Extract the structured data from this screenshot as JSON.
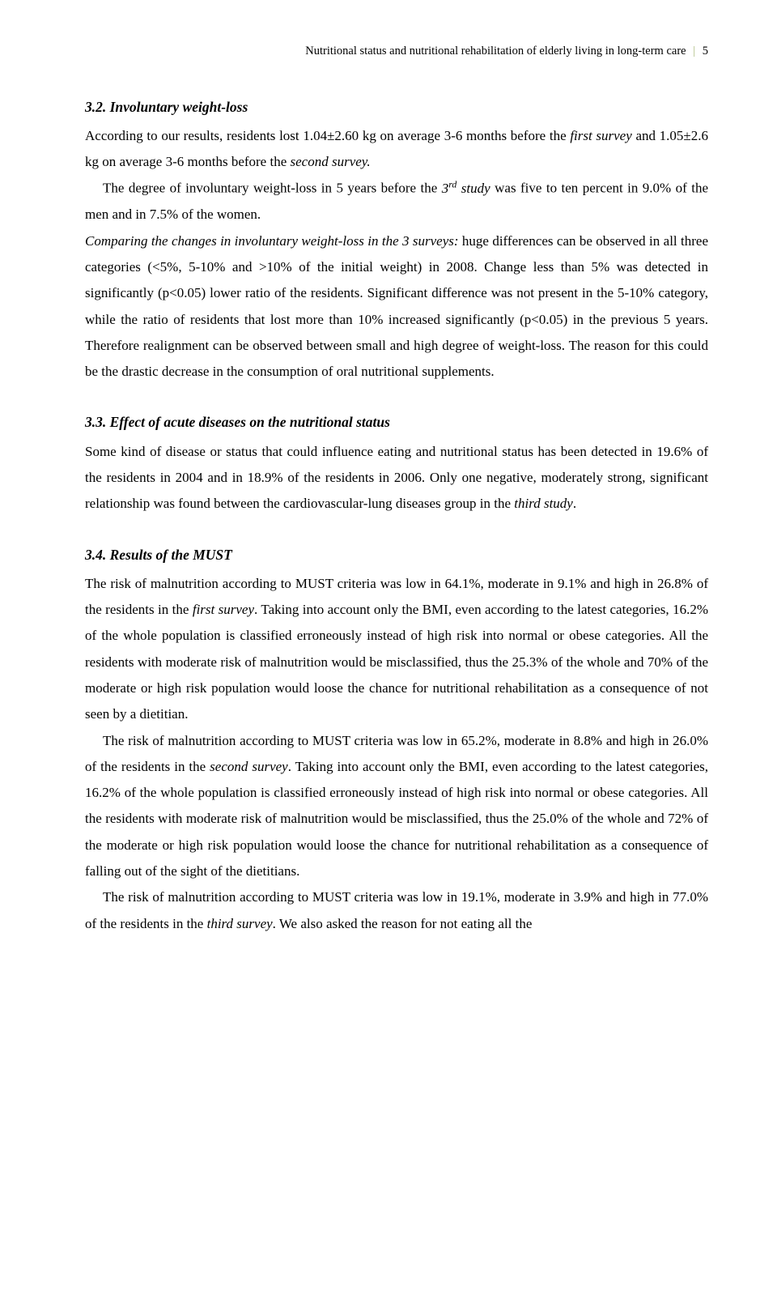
{
  "header": {
    "title": "Nutritional status and nutritional rehabilitation of elderly living in long-term care",
    "page": "5"
  },
  "s32": {
    "heading": "3.2. Involuntary weight-loss",
    "p1a": "According to our results, residents lost 1.04±2.60 kg on average 3-6 months before the ",
    "p1b": "first survey",
    "p1c": " and 1.05±2.6 kg on average 3-6 months before the ",
    "p1d": "second survey.",
    "p2a": "The degree of involuntary weight-loss in 5 years before the ",
    "p2b": "3",
    "p2c": "rd",
    "p2d": " study",
    "p2e": " was five to ten percent in 9.0% of the men and in 7.5% of the women.",
    "p3a": "Comparing the changes in involuntary weight-loss in the 3 surveys:",
    "p3b": " huge differences can be observed in all three categories (<5%, 5-10% and >10% of the initial weight) in 2008. Change less than 5% was detected in significantly (p<0.05) lower ratio of the residents. Significant difference was not present in the 5-10% category, while the ratio of residents that lost more than 10% increased significantly (p<0.05) in the previous 5 years. Therefore realignment can be observed between small and high degree of weight-loss. The reason for this could be the drastic decrease in the consumption of oral nutritional supplements."
  },
  "s33": {
    "heading": "3.3. Effect of acute diseases on the nutritional status",
    "p1a": "Some kind of disease or status that could influence eating and nutritional status has been detected in 19.6% of the residents in 2004 and in 18.9% of the residents in 2006. Only one negative, moderately strong, significant relationship was found between the cardiovascular-lung diseases group in the ",
    "p1b": "third study",
    "p1c": "."
  },
  "s34": {
    "heading": "3.4. Results of the MUST",
    "p1a": "The risk of malnutrition according to MUST criteria was low in 64.1%, moderate in 9.1% and high in 26.8% of the residents in the ",
    "p1b": "first survey",
    "p1c": ". Taking into account only the BMI, even according to the latest categories, 16.2% of the whole population is classified erroneously instead of high risk into normal or obese categories.  All the residents with moderate risk of malnutrition would be misclassified, thus the 25.3% of the whole and 70% of the moderate or high risk population would loose the chance for nutritional rehabilitation as a consequence of not seen by a dietitian.",
    "p2a": "The risk of malnutrition according to MUST criteria was low in 65.2%, moderate in 8.8% and high in 26.0% of the residents in the ",
    "p2b": "second survey",
    "p2c": ".  Taking into account only the BMI, even according to the latest categories, 16.2% of the whole population is classified erroneously instead of high risk into normal or obese categories.  All the residents with moderate risk of malnutrition would be misclassified, thus the 25.0% of the whole and 72% of the moderate or high risk population would loose the chance for nutritional rehabilitation as a consequence of falling out of the sight of the dietitians.",
    "p3a": "The risk of malnutrition according to MUST criteria was low in 19.1%, moderate in 3.9% and high in 77.0% of the residents in the ",
    "p3b": "third survey",
    "p3c": ". We also asked the reason for not eating all the"
  }
}
